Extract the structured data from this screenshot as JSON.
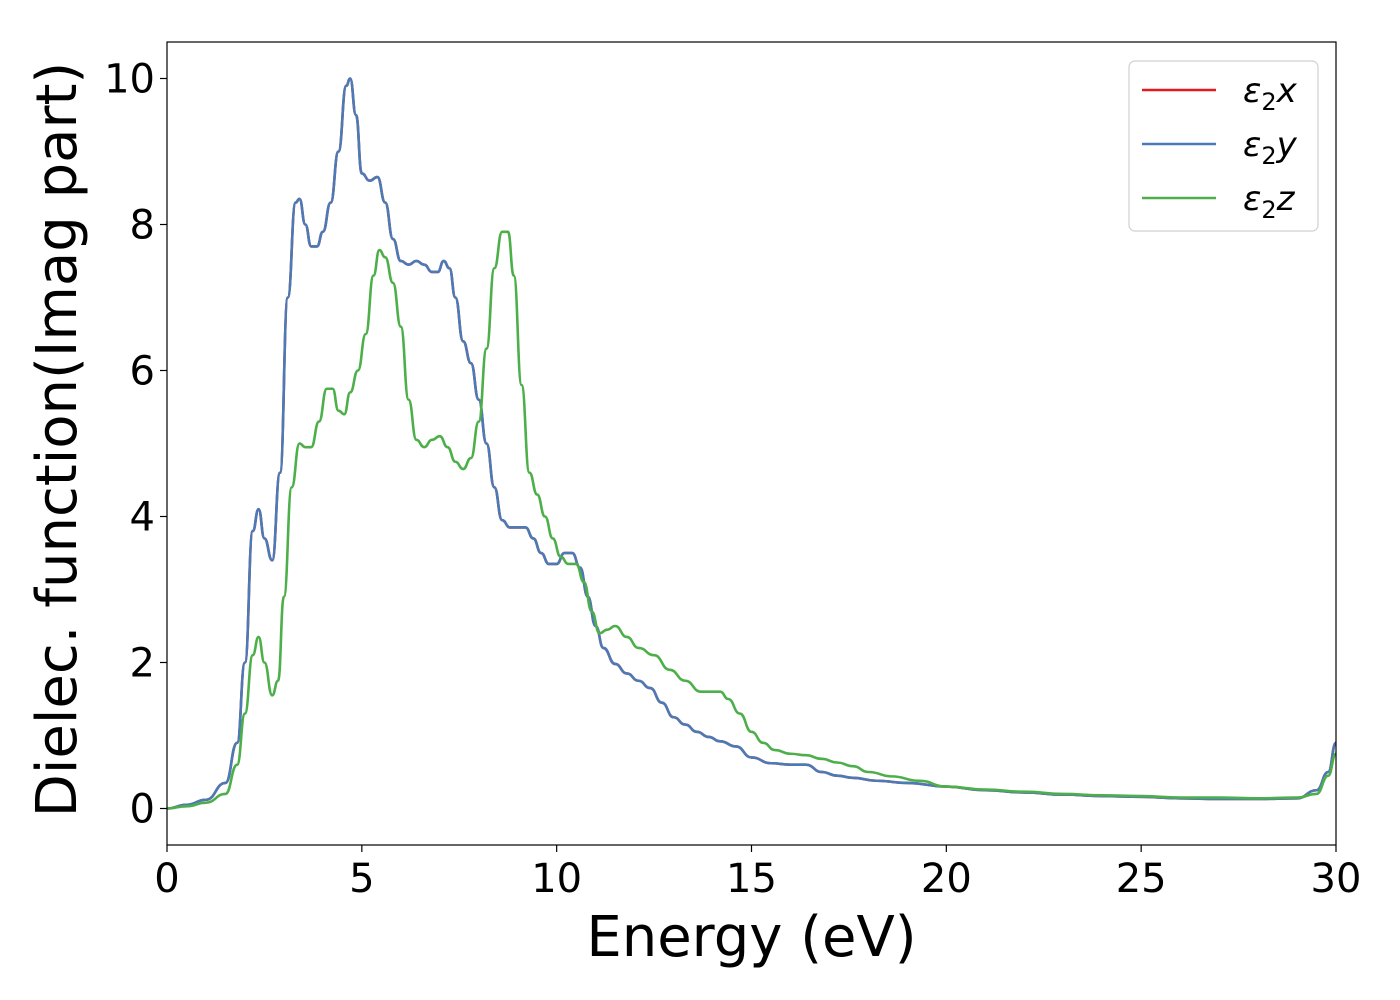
{
  "chart_data": {
    "type": "line",
    "xlabel": "Energy (eV)",
    "ylabel": "Dielec. function(Imag part)",
    "xlim": [
      0,
      30
    ],
    "ylim": [
      -0.5,
      10.5
    ],
    "xticks": [
      0,
      5,
      10,
      15,
      20,
      25,
      30
    ],
    "yticks": [
      0,
      2,
      4,
      6,
      8,
      10
    ],
    "xtick_labels": [
      "0",
      "5",
      "10",
      "15",
      "20",
      "25",
      "30"
    ],
    "ytick_labels": [
      "0",
      "2",
      "4",
      "6",
      "8",
      "10"
    ],
    "grid": false,
    "legend_position": "top-right",
    "series": [
      {
        "name": "ε2x",
        "legend_base": "ε",
        "legend_sub": "2",
        "legend_tail": "x",
        "color": "#e41a1c",
        "points": [
          [
            0,
            0
          ],
          [
            0.5,
            0.05
          ],
          [
            1.0,
            0.12
          ],
          [
            1.5,
            0.35
          ],
          [
            1.8,
            0.9
          ],
          [
            2.0,
            2.0
          ],
          [
            2.2,
            3.8
          ],
          [
            2.35,
            4.1
          ],
          [
            2.5,
            3.7
          ],
          [
            2.7,
            3.4
          ],
          [
            2.9,
            4.6
          ],
          [
            3.1,
            7.0
          ],
          [
            3.3,
            8.3
          ],
          [
            3.4,
            8.35
          ],
          [
            3.55,
            8.0
          ],
          [
            3.7,
            7.7
          ],
          [
            3.85,
            7.7
          ],
          [
            4.0,
            7.9
          ],
          [
            4.2,
            8.3
          ],
          [
            4.4,
            9.0
          ],
          [
            4.6,
            9.9
          ],
          [
            4.7,
            10.0
          ],
          [
            4.85,
            9.5
          ],
          [
            5.0,
            8.7
          ],
          [
            5.2,
            8.6
          ],
          [
            5.4,
            8.65
          ],
          [
            5.6,
            8.3
          ],
          [
            5.8,
            7.8
          ],
          [
            6.0,
            7.5
          ],
          [
            6.2,
            7.45
          ],
          [
            6.4,
            7.5
          ],
          [
            6.6,
            7.45
          ],
          [
            6.8,
            7.35
          ],
          [
            6.95,
            7.35
          ],
          [
            7.1,
            7.5
          ],
          [
            7.25,
            7.4
          ],
          [
            7.4,
            7.0
          ],
          [
            7.6,
            6.4
          ],
          [
            7.8,
            6.1
          ],
          [
            8.0,
            5.6
          ],
          [
            8.2,
            5.0
          ],
          [
            8.4,
            4.4
          ],
          [
            8.6,
            3.95
          ],
          [
            8.8,
            3.85
          ],
          [
            9.0,
            3.85
          ],
          [
            9.2,
            3.85
          ],
          [
            9.4,
            3.7
          ],
          [
            9.6,
            3.5
          ],
          [
            9.8,
            3.35
          ],
          [
            10.0,
            3.35
          ],
          [
            10.2,
            3.5
          ],
          [
            10.4,
            3.5
          ],
          [
            10.6,
            3.3
          ],
          [
            10.8,
            2.9
          ],
          [
            11.0,
            2.5
          ],
          [
            11.2,
            2.2
          ],
          [
            11.5,
            1.98
          ],
          [
            11.8,
            1.85
          ],
          [
            12.1,
            1.75
          ],
          [
            12.4,
            1.65
          ],
          [
            12.7,
            1.45
          ],
          [
            13.0,
            1.25
          ],
          [
            13.3,
            1.15
          ],
          [
            13.6,
            1.05
          ],
          [
            13.9,
            0.98
          ],
          [
            14.2,
            0.92
          ],
          [
            14.6,
            0.85
          ],
          [
            15.0,
            0.7
          ],
          [
            15.5,
            0.62
          ],
          [
            16.0,
            0.6
          ],
          [
            16.4,
            0.6
          ],
          [
            16.8,
            0.5
          ],
          [
            17.2,
            0.45
          ],
          [
            17.6,
            0.42
          ],
          [
            18.2,
            0.38
          ],
          [
            19.0,
            0.35
          ],
          [
            20.0,
            0.3
          ],
          [
            21.0,
            0.25
          ],
          [
            22.0,
            0.22
          ],
          [
            23.0,
            0.19
          ],
          [
            24.0,
            0.17
          ],
          [
            25.0,
            0.16
          ],
          [
            26.0,
            0.14
          ],
          [
            27.0,
            0.13
          ],
          [
            28.0,
            0.13
          ],
          [
            29.0,
            0.14
          ],
          [
            29.5,
            0.25
          ],
          [
            29.8,
            0.5
          ],
          [
            30.0,
            0.9
          ]
        ]
      },
      {
        "name": "ε2y",
        "legend_base": "ε",
        "legend_sub": "2",
        "legend_tail": "y",
        "color": "#4a7bb7",
        "points": [
          [
            0,
            0
          ],
          [
            0.5,
            0.05
          ],
          [
            1.0,
            0.12
          ],
          [
            1.5,
            0.35
          ],
          [
            1.8,
            0.9
          ],
          [
            2.0,
            2.0
          ],
          [
            2.2,
            3.8
          ],
          [
            2.35,
            4.1
          ],
          [
            2.5,
            3.7
          ],
          [
            2.7,
            3.4
          ],
          [
            2.9,
            4.6
          ],
          [
            3.1,
            7.0
          ],
          [
            3.3,
            8.3
          ],
          [
            3.4,
            8.35
          ],
          [
            3.55,
            8.0
          ],
          [
            3.7,
            7.7
          ],
          [
            3.85,
            7.7
          ],
          [
            4.0,
            7.9
          ],
          [
            4.2,
            8.3
          ],
          [
            4.4,
            9.0
          ],
          [
            4.6,
            9.9
          ],
          [
            4.7,
            10.0
          ],
          [
            4.85,
            9.5
          ],
          [
            5.0,
            8.7
          ],
          [
            5.2,
            8.6
          ],
          [
            5.4,
            8.65
          ],
          [
            5.6,
            8.3
          ],
          [
            5.8,
            7.8
          ],
          [
            6.0,
            7.5
          ],
          [
            6.2,
            7.45
          ],
          [
            6.4,
            7.5
          ],
          [
            6.6,
            7.45
          ],
          [
            6.8,
            7.35
          ],
          [
            6.95,
            7.35
          ],
          [
            7.1,
            7.5
          ],
          [
            7.25,
            7.4
          ],
          [
            7.4,
            7.0
          ],
          [
            7.6,
            6.4
          ],
          [
            7.8,
            6.1
          ],
          [
            8.0,
            5.6
          ],
          [
            8.2,
            5.0
          ],
          [
            8.4,
            4.4
          ],
          [
            8.6,
            3.95
          ],
          [
            8.8,
            3.85
          ],
          [
            9.0,
            3.85
          ],
          [
            9.2,
            3.85
          ],
          [
            9.4,
            3.7
          ],
          [
            9.6,
            3.5
          ],
          [
            9.8,
            3.35
          ],
          [
            10.0,
            3.35
          ],
          [
            10.2,
            3.5
          ],
          [
            10.4,
            3.5
          ],
          [
            10.6,
            3.3
          ],
          [
            10.8,
            2.9
          ],
          [
            11.0,
            2.5
          ],
          [
            11.2,
            2.2
          ],
          [
            11.5,
            1.98
          ],
          [
            11.8,
            1.85
          ],
          [
            12.1,
            1.75
          ],
          [
            12.4,
            1.65
          ],
          [
            12.7,
            1.45
          ],
          [
            13.0,
            1.25
          ],
          [
            13.3,
            1.15
          ],
          [
            13.6,
            1.05
          ],
          [
            13.9,
            0.98
          ],
          [
            14.2,
            0.92
          ],
          [
            14.6,
            0.85
          ],
          [
            15.0,
            0.7
          ],
          [
            15.5,
            0.62
          ],
          [
            16.0,
            0.6
          ],
          [
            16.4,
            0.6
          ],
          [
            16.8,
            0.5
          ],
          [
            17.2,
            0.45
          ],
          [
            17.6,
            0.42
          ],
          [
            18.2,
            0.38
          ],
          [
            19.0,
            0.35
          ],
          [
            20.0,
            0.3
          ],
          [
            21.0,
            0.25
          ],
          [
            22.0,
            0.22
          ],
          [
            23.0,
            0.19
          ],
          [
            24.0,
            0.17
          ],
          [
            25.0,
            0.16
          ],
          [
            26.0,
            0.14
          ],
          [
            27.0,
            0.13
          ],
          [
            28.0,
            0.13
          ],
          [
            29.0,
            0.14
          ],
          [
            29.5,
            0.25
          ],
          [
            29.8,
            0.5
          ],
          [
            30.0,
            0.9
          ]
        ]
      },
      {
        "name": "ε2z",
        "legend_base": "ε",
        "legend_sub": "2",
        "legend_tail": "z",
        "color": "#4daf4a",
        "points": [
          [
            0,
            0
          ],
          [
            0.5,
            0.03
          ],
          [
            1.0,
            0.08
          ],
          [
            1.5,
            0.2
          ],
          [
            1.8,
            0.6
          ],
          [
            2.0,
            1.3
          ],
          [
            2.2,
            2.1
          ],
          [
            2.35,
            2.35
          ],
          [
            2.5,
            2.0
          ],
          [
            2.7,
            1.55
          ],
          [
            2.85,
            1.75
          ],
          [
            3.0,
            2.9
          ],
          [
            3.2,
            4.4
          ],
          [
            3.4,
            5.0
          ],
          [
            3.55,
            4.95
          ],
          [
            3.7,
            4.95
          ],
          [
            3.9,
            5.3
          ],
          [
            4.1,
            5.75
          ],
          [
            4.25,
            5.75
          ],
          [
            4.4,
            5.45
          ],
          [
            4.55,
            5.4
          ],
          [
            4.7,
            5.7
          ],
          [
            4.9,
            6.0
          ],
          [
            5.1,
            6.5
          ],
          [
            5.3,
            7.3
          ],
          [
            5.45,
            7.65
          ],
          [
            5.6,
            7.55
          ],
          [
            5.8,
            7.2
          ],
          [
            6.0,
            6.6
          ],
          [
            6.2,
            5.6
          ],
          [
            6.4,
            5.05
          ],
          [
            6.6,
            4.95
          ],
          [
            6.8,
            5.05
          ],
          [
            7.0,
            5.1
          ],
          [
            7.2,
            4.95
          ],
          [
            7.4,
            4.75
          ],
          [
            7.6,
            4.65
          ],
          [
            7.8,
            4.8
          ],
          [
            8.0,
            5.3
          ],
          [
            8.2,
            6.3
          ],
          [
            8.4,
            7.4
          ],
          [
            8.6,
            7.9
          ],
          [
            8.75,
            7.9
          ],
          [
            8.9,
            7.3
          ],
          [
            9.1,
            5.8
          ],
          [
            9.3,
            4.6
          ],
          [
            9.5,
            4.3
          ],
          [
            9.7,
            4.0
          ],
          [
            9.9,
            3.7
          ],
          [
            10.1,
            3.45
          ],
          [
            10.3,
            3.35
          ],
          [
            10.5,
            3.35
          ],
          [
            10.7,
            3.1
          ],
          [
            10.9,
            2.7
          ],
          [
            11.1,
            2.4
          ],
          [
            11.3,
            2.45
          ],
          [
            11.5,
            2.5
          ],
          [
            11.8,
            2.35
          ],
          [
            12.1,
            2.2
          ],
          [
            12.5,
            2.1
          ],
          [
            12.9,
            1.9
          ],
          [
            13.3,
            1.75
          ],
          [
            13.7,
            1.6
          ],
          [
            14.0,
            1.6
          ],
          [
            14.2,
            1.6
          ],
          [
            14.4,
            1.5
          ],
          [
            14.7,
            1.3
          ],
          [
            15.0,
            1.05
          ],
          [
            15.3,
            0.9
          ],
          [
            15.6,
            0.8
          ],
          [
            16.0,
            0.75
          ],
          [
            16.4,
            0.73
          ],
          [
            16.8,
            0.68
          ],
          [
            17.2,
            0.63
          ],
          [
            17.6,
            0.58
          ],
          [
            18.0,
            0.5
          ],
          [
            18.6,
            0.44
          ],
          [
            19.3,
            0.38
          ],
          [
            20.0,
            0.3
          ],
          [
            21.0,
            0.26
          ],
          [
            22.0,
            0.23
          ],
          [
            23.0,
            0.2
          ],
          [
            24.0,
            0.18
          ],
          [
            25.0,
            0.17
          ],
          [
            26.0,
            0.15
          ],
          [
            27.0,
            0.15
          ],
          [
            28.0,
            0.14
          ],
          [
            29.0,
            0.15
          ],
          [
            29.5,
            0.2
          ],
          [
            29.8,
            0.45
          ],
          [
            30.0,
            0.75
          ]
        ]
      }
    ]
  }
}
